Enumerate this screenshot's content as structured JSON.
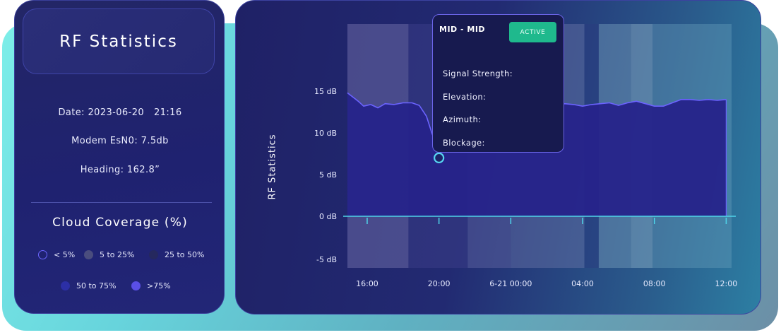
{
  "left_panel": {
    "title": "RF Statistics",
    "date_label": "Date:",
    "date": "2023-06-20",
    "time": "21:16",
    "modem": "Modem EsN0: 7.5db",
    "heading": "Heading: 162.8”",
    "cloud_title": "Cloud Coverage (%)",
    "legend": [
      {
        "label": "< 5%",
        "color": "#1f2270",
        "border": "#6b66ff"
      },
      {
        "label": "5 to 25%",
        "color": "#4a4d7e"
      },
      {
        "label": "25 to 50%",
        "color": "#25285e"
      },
      {
        "label": "50 to 75%",
        "color": "#2c2fa6"
      },
      {
        "label": ">75%",
        "color": "#5a4fe6"
      }
    ]
  },
  "tooltip": {
    "title": "MID - MID",
    "badge": "ACTIVE",
    "rows": [
      "Signal Strength:",
      "Elevation:",
      "Azimuth:",
      "Blockage:"
    ]
  },
  "chart_data": {
    "type": "area",
    "ylabel": "RF Statistics",
    "y_ticks": [
      "15 dB",
      "10 dB",
      "5 dB",
      "0 dB",
      "-5 dB"
    ],
    "y_tick_values": [
      15,
      10,
      5,
      0,
      -5
    ],
    "ylim": [
      -6,
      22
    ],
    "x_ticks": [
      "16:00",
      "20:00",
      "6-21 00:00",
      "04:00",
      "08:00",
      "12:00"
    ],
    "x_tick_hours": [
      16,
      20,
      24,
      28,
      32,
      36
    ],
    "xlim": [
      14.9,
      36.3
    ],
    "series": [
      {
        "x": [
          14.9,
          15.2,
          15.5,
          15.8,
          16.2,
          16.6,
          17.0,
          17.5,
          18.0,
          18.5,
          18.9,
          19.3,
          19.6,
          19.9,
          20.0,
          20.3,
          20.6,
          21.0,
          21.5,
          22.0,
          22.5,
          23.0,
          23.5,
          24.0,
          24.5,
          25.0,
          25.5,
          26.0,
          26.5,
          27.0,
          27.5,
          28.0,
          28.5,
          29.0,
          29.5,
          30.0,
          30.5,
          31.0,
          31.5,
          32.0,
          32.5,
          33.0,
          33.5,
          34.0,
          34.5,
          35.0,
          35.5,
          36.0
        ],
        "y": [
          14.8,
          14.3,
          13.8,
          13.2,
          13.4,
          13.0,
          13.5,
          13.4,
          13.6,
          13.6,
          13.3,
          12.0,
          10.0,
          8.2,
          7.0,
          8.8,
          11.0,
          12.4,
          12.9,
          13.0,
          13.2,
          13.3,
          13.4,
          13.5,
          13.6,
          13.6,
          13.5,
          13.4,
          13.4,
          13.5,
          13.4,
          13.2,
          13.4,
          13.5,
          13.6,
          13.3,
          13.6,
          13.8,
          13.5,
          13.2,
          13.2,
          13.6,
          14.0,
          14.0,
          13.9,
          14.0,
          13.9,
          14.0
        ]
      }
    ],
    "highlight_point": {
      "x": 20.0,
      "y": 7.0
    },
    "fill_color": "#26238a",
    "line_color": "#6b63ff",
    "marker_color": "#56d4f0",
    "axis_color": "#4fd5ea",
    "bands": [
      {
        "from": 14.9,
        "to": 18.3,
        "color": "#6b6aa6",
        "opacity": 0.55
      },
      {
        "from": 18.3,
        "to": 21.6,
        "color": "#3a3c86",
        "opacity": 0.55
      },
      {
        "from": 21.6,
        "to": 24.0,
        "color": "#5a5f9c",
        "opacity": 0.55
      },
      {
        "from": 24.0,
        "to": 28.1,
        "color": "#6a76a8",
        "opacity": 0.45
      },
      {
        "from": 28.1,
        "to": 28.9,
        "color": "#2a3c80",
        "opacity": 0.5
      },
      {
        "from": 28.9,
        "to": 30.7,
        "color": "#78a0bd",
        "opacity": 0.45
      },
      {
        "from": 30.7,
        "to": 31.9,
        "color": "#93b9cb",
        "opacity": 0.45
      },
      {
        "from": 31.9,
        "to": 36.3,
        "color": "#6aa0bb",
        "opacity": 0.4
      }
    ]
  }
}
